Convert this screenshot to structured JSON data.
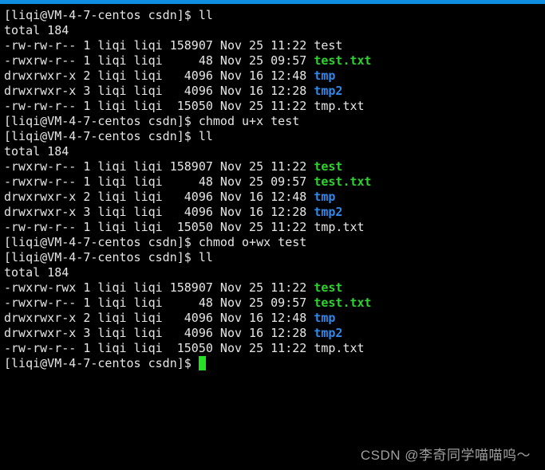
{
  "window": {
    "kind": "terminal",
    "top_bar_color": "#0d8ee1",
    "background": "#000000"
  },
  "palette": {
    "bg": "#000000",
    "topbar": "#0d8ee1",
    "fg": "#e6e6e6",
    "green": "#2fd32f",
    "blue": "#3088e8",
    "cursor": "#23e023",
    "watermark": "#9e9e9e"
  },
  "terminal": {
    "prompt": "[liqi@VM-4-7-centos csdn]$",
    "commands": [
      "ll",
      "chmod u+x test",
      "ll",
      "chmod o+wx test",
      "ll"
    ],
    "lines": [
      {
        "segments": [
          {
            "text": "[liqi@VM-4-7-centos csdn]$ ll",
            "style": "fg"
          }
        ]
      },
      {
        "segments": [
          {
            "text": "total 184",
            "style": "fg"
          }
        ]
      },
      {
        "segments": [
          {
            "text": "-rw-rw-r-- 1 liqi liqi 158907 Nov 25 11:22 test",
            "style": "fg"
          }
        ]
      },
      {
        "segments": [
          {
            "text": "-rwxrw-r-- 1 liqi liqi     48 Nov 25 09:57 ",
            "style": "fg"
          },
          {
            "text": "test.txt",
            "style": "green"
          }
        ]
      },
      {
        "segments": [
          {
            "text": "drwxrwxr-x 2 liqi liqi   4096 Nov 16 12:48 ",
            "style": "fg"
          },
          {
            "text": "tmp",
            "style": "blue"
          }
        ]
      },
      {
        "segments": [
          {
            "text": "drwxrwxr-x 3 liqi liqi   4096 Nov 16 12:28 ",
            "style": "fg"
          },
          {
            "text": "tmp2",
            "style": "blue"
          }
        ]
      },
      {
        "segments": [
          {
            "text": "-rw-rw-r-- 1 liqi liqi  15050 Nov 25 11:22 tmp.txt",
            "style": "fg"
          }
        ]
      },
      {
        "segments": [
          {
            "text": "[liqi@VM-4-7-centos csdn]$ chmod u+x test",
            "style": "fg"
          }
        ]
      },
      {
        "segments": [
          {
            "text": "[liqi@VM-4-7-centos csdn]$ ll",
            "style": "fg"
          }
        ]
      },
      {
        "segments": [
          {
            "text": "total 184",
            "style": "fg"
          }
        ]
      },
      {
        "segments": [
          {
            "text": "-rwxrw-r-- 1 liqi liqi 158907 Nov 25 11:22 ",
            "style": "fg"
          },
          {
            "text": "test",
            "style": "green"
          }
        ]
      },
      {
        "segments": [
          {
            "text": "-rwxrw-r-- 1 liqi liqi     48 Nov 25 09:57 ",
            "style": "fg"
          },
          {
            "text": "test.txt",
            "style": "green"
          }
        ]
      },
      {
        "segments": [
          {
            "text": "drwxrwxr-x 2 liqi liqi   4096 Nov 16 12:48 ",
            "style": "fg"
          },
          {
            "text": "tmp",
            "style": "blue"
          }
        ]
      },
      {
        "segments": [
          {
            "text": "drwxrwxr-x 3 liqi liqi   4096 Nov 16 12:28 ",
            "style": "fg"
          },
          {
            "text": "tmp2",
            "style": "blue"
          }
        ]
      },
      {
        "segments": [
          {
            "text": "-rw-rw-r-- 1 liqi liqi  15050 Nov 25 11:22 tmp.txt",
            "style": "fg"
          }
        ]
      },
      {
        "segments": [
          {
            "text": "[liqi@VM-4-7-centos csdn]$ chmod o+wx test",
            "style": "fg"
          }
        ]
      },
      {
        "segments": [
          {
            "text": "[liqi@VM-4-7-centos csdn]$ ll",
            "style": "fg"
          }
        ]
      },
      {
        "segments": [
          {
            "text": "total 184",
            "style": "fg"
          }
        ]
      },
      {
        "segments": [
          {
            "text": "-rwxrw-rwx 1 liqi liqi 158907 Nov 25 11:22 ",
            "style": "fg"
          },
          {
            "text": "test",
            "style": "green"
          }
        ]
      },
      {
        "segments": [
          {
            "text": "-rwxrw-r-- 1 liqi liqi     48 Nov 25 09:57 ",
            "style": "fg"
          },
          {
            "text": "test.txt",
            "style": "green"
          }
        ]
      },
      {
        "segments": [
          {
            "text": "drwxrwxr-x 2 liqi liqi   4096 Nov 16 12:48 ",
            "style": "fg"
          },
          {
            "text": "tmp",
            "style": "blue"
          }
        ]
      },
      {
        "segments": [
          {
            "text": "drwxrwxr-x 3 liqi liqi   4096 Nov 16 12:28 ",
            "style": "fg"
          },
          {
            "text": "tmp2",
            "style": "blue"
          }
        ]
      },
      {
        "segments": [
          {
            "text": "-rw-rw-r-- 1 liqi liqi  15050 Nov 25 11:22 tmp.txt",
            "style": "fg"
          }
        ]
      },
      {
        "segments": [
          {
            "text": "[liqi@VM-4-7-centos csdn]$ ",
            "style": "fg"
          },
          {
            "text": " ",
            "style": "cursor"
          }
        ]
      }
    ]
  },
  "watermark": {
    "text": "CSDN @李奇同学喵喵呜～"
  }
}
